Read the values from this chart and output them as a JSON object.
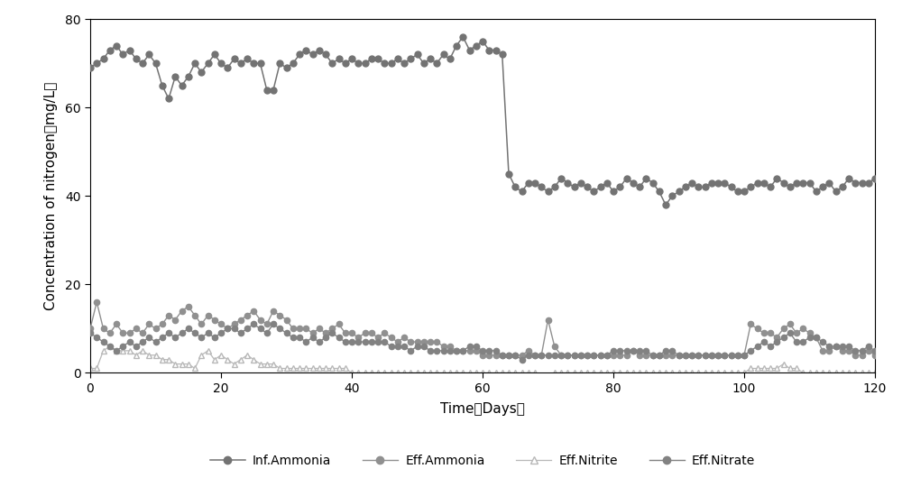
{
  "inf_ammonia_x": [
    0,
    1,
    2,
    3,
    4,
    5,
    6,
    7,
    8,
    9,
    10,
    11,
    12,
    13,
    14,
    15,
    16,
    17,
    18,
    19,
    20,
    21,
    22,
    23,
    24,
    25,
    26,
    27,
    28,
    29,
    30,
    31,
    32,
    33,
    34,
    35,
    36,
    37,
    38,
    39,
    40,
    41,
    42,
    43,
    44,
    45,
    46,
    47,
    48,
    49,
    50,
    51,
    52,
    53,
    54,
    55,
    56,
    57,
    58,
    59,
    60,
    61,
    62,
    63,
    64,
    65,
    66,
    67,
    68,
    69,
    70,
    71,
    72,
    73,
    74,
    75,
    76,
    77,
    78,
    79,
    80,
    81,
    82,
    83,
    84,
    85,
    86,
    87,
    88,
    89,
    90,
    91,
    92,
    93,
    94,
    95,
    96,
    97,
    98,
    99,
    100,
    101,
    102,
    103,
    104,
    105,
    106,
    107,
    108,
    109,
    110,
    111,
    112,
    113,
    114,
    115,
    116,
    117,
    118,
    119,
    120
  ],
  "inf_ammonia_y": [
    69,
    70,
    71,
    73,
    74,
    72,
    73,
    71,
    70,
    72,
    70,
    65,
    62,
    67,
    65,
    67,
    70,
    68,
    70,
    72,
    70,
    69,
    71,
    70,
    71,
    70,
    70,
    64,
    64,
    70,
    69,
    70,
    72,
    73,
    72,
    73,
    72,
    70,
    71,
    70,
    71,
    70,
    70,
    71,
    71,
    70,
    70,
    71,
    70,
    71,
    72,
    70,
    71,
    70,
    72,
    71,
    74,
    76,
    73,
    74,
    75,
    73,
    73,
    72,
    45,
    42,
    41,
    43,
    43,
    42,
    41,
    42,
    44,
    43,
    42,
    43,
    42,
    41,
    42,
    43,
    41,
    42,
    44,
    43,
    42,
    44,
    43,
    41,
    38,
    40,
    41,
    42,
    43,
    42,
    42,
    43,
    43,
    43,
    42,
    41,
    41,
    42,
    43,
    43,
    42,
    44,
    43,
    42,
    43,
    43,
    43,
    41,
    42,
    43,
    41,
    42,
    44,
    43,
    43,
    43,
    44
  ],
  "eff_ammonia_x": [
    0,
    1,
    2,
    3,
    4,
    5,
    6,
    7,
    8,
    9,
    10,
    11,
    12,
    13,
    14,
    15,
    16,
    17,
    18,
    19,
    20,
    21,
    22,
    23,
    24,
    25,
    26,
    27,
    28,
    29,
    30,
    31,
    32,
    33,
    34,
    35,
    36,
    37,
    38,
    39,
    40,
    41,
    42,
    43,
    44,
    45,
    46,
    47,
    48,
    49,
    50,
    51,
    52,
    53,
    54,
    55,
    56,
    57,
    58,
    59,
    60,
    61,
    62,
    63,
    64,
    65,
    66,
    67,
    68,
    69,
    70,
    71,
    72,
    73,
    74,
    75,
    76,
    77,
    78,
    79,
    80,
    81,
    82,
    83,
    84,
    85,
    86,
    87,
    88,
    89,
    90,
    91,
    92,
    93,
    94,
    95,
    96,
    97,
    98,
    99,
    100,
    101,
    102,
    103,
    104,
    105,
    106,
    107,
    108,
    109,
    110,
    111,
    112,
    113,
    114,
    115,
    116,
    117,
    118,
    119,
    120
  ],
  "eff_ammonia_y": [
    10,
    16,
    10,
    9,
    11,
    9,
    9,
    10,
    9,
    11,
    10,
    11,
    13,
    12,
    14,
    15,
    13,
    11,
    13,
    12,
    11,
    10,
    11,
    12,
    13,
    14,
    12,
    11,
    14,
    13,
    12,
    10,
    10,
    10,
    9,
    10,
    9,
    10,
    11,
    9,
    9,
    8,
    9,
    9,
    8,
    9,
    8,
    7,
    8,
    7,
    7,
    7,
    7,
    7,
    6,
    6,
    5,
    5,
    5,
    5,
    4,
    4,
    4,
    4,
    4,
    4,
    4,
    5,
    4,
    4,
    12,
    6,
    4,
    4,
    4,
    4,
    4,
    4,
    4,
    4,
    4,
    4,
    4,
    5,
    4,
    4,
    4,
    4,
    4,
    4,
    4,
    4,
    4,
    4,
    4,
    4,
    4,
    4,
    4,
    4,
    4,
    11,
    10,
    9,
    9,
    8,
    10,
    11,
    9,
    10,
    9,
    8,
    5,
    5,
    6,
    5,
    5,
    4,
    4,
    5,
    4
  ],
  "eff_nitrite_x": [
    0,
    1,
    2,
    3,
    4,
    5,
    6,
    7,
    8,
    9,
    10,
    11,
    12,
    13,
    14,
    15,
    16,
    17,
    18,
    19,
    20,
    21,
    22,
    23,
    24,
    25,
    26,
    27,
    28,
    29,
    30,
    31,
    32,
    33,
    34,
    35,
    36,
    37,
    38,
    39,
    40,
    41,
    42,
    43,
    44,
    45,
    46,
    47,
    48,
    49,
    50,
    51,
    52,
    53,
    54,
    55,
    56,
    57,
    58,
    59,
    60,
    61,
    62,
    63,
    64,
    65,
    66,
    67,
    68,
    69,
    70,
    71,
    72,
    73,
    74,
    75,
    76,
    77,
    78,
    79,
    80,
    81,
    82,
    83,
    84,
    85,
    86,
    87,
    88,
    89,
    90,
    91,
    92,
    93,
    94,
    95,
    96,
    97,
    98,
    99,
    100,
    101,
    102,
    103,
    104,
    105,
    106,
    107,
    108,
    109,
    110,
    111,
    112,
    113,
    114,
    115,
    116,
    117,
    118,
    119,
    120
  ],
  "eff_nitrite_y": [
    1,
    1,
    5,
    6,
    5,
    5,
    5,
    4,
    5,
    4,
    4,
    3,
    3,
    2,
    2,
    2,
    1,
    4,
    5,
    3,
    4,
    3,
    2,
    3,
    4,
    3,
    2,
    2,
    2,
    1,
    1,
    1,
    1,
    1,
    1,
    1,
    1,
    1,
    1,
    1,
    0,
    0,
    0,
    0,
    0,
    0,
    0,
    0,
    0,
    0,
    0,
    0,
    0,
    0,
    0,
    0,
    0,
    0,
    0,
    0,
    0,
    0,
    0,
    0,
    0,
    0,
    0,
    0,
    0,
    -1,
    -1,
    0,
    0,
    0,
    0,
    0,
    0,
    0,
    0,
    0,
    0,
    0,
    0,
    0,
    0,
    0,
    0,
    0,
    0,
    0,
    0,
    0,
    0,
    0,
    0,
    0,
    0,
    0,
    0,
    0,
    0,
    1,
    1,
    1,
    1,
    1,
    2,
    1,
    1,
    0,
    0,
    0,
    0,
    0,
    0,
    0,
    0,
    0,
    0,
    0,
    0
  ],
  "eff_nitrate_x": [
    0,
    1,
    2,
    3,
    4,
    5,
    6,
    7,
    8,
    9,
    10,
    11,
    12,
    13,
    14,
    15,
    16,
    17,
    18,
    19,
    20,
    21,
    22,
    23,
    24,
    25,
    26,
    27,
    28,
    29,
    30,
    31,
    32,
    33,
    34,
    35,
    36,
    37,
    38,
    39,
    40,
    41,
    42,
    43,
    44,
    45,
    46,
    47,
    48,
    49,
    50,
    51,
    52,
    53,
    54,
    55,
    56,
    57,
    58,
    59,
    60,
    61,
    62,
    63,
    64,
    65,
    66,
    67,
    68,
    69,
    70,
    71,
    72,
    73,
    74,
    75,
    76,
    77,
    78,
    79,
    80,
    81,
    82,
    83,
    84,
    85,
    86,
    87,
    88,
    89,
    90,
    91,
    92,
    93,
    94,
    95,
    96,
    97,
    98,
    99,
    100,
    101,
    102,
    103,
    104,
    105,
    106,
    107,
    108,
    109,
    110,
    111,
    112,
    113,
    114,
    115,
    116,
    117,
    118,
    119,
    120
  ],
  "eff_nitrate_y": [
    9,
    8,
    7,
    6,
    5,
    6,
    7,
    6,
    7,
    8,
    7,
    8,
    9,
    8,
    9,
    10,
    9,
    8,
    9,
    8,
    9,
    10,
    10,
    9,
    10,
    11,
    10,
    9,
    11,
    10,
    9,
    8,
    8,
    7,
    8,
    7,
    8,
    9,
    8,
    7,
    7,
    7,
    7,
    7,
    7,
    7,
    6,
    6,
    6,
    5,
    6,
    6,
    5,
    5,
    5,
    5,
    5,
    5,
    6,
    6,
    5,
    5,
    5,
    4,
    4,
    4,
    3,
    4,
    4,
    4,
    4,
    4,
    4,
    4,
    4,
    4,
    4,
    4,
    4,
    4,
    5,
    5,
    5,
    5,
    5,
    5,
    4,
    4,
    5,
    5,
    4,
    4,
    4,
    4,
    4,
    4,
    4,
    4,
    4,
    4,
    4,
    5,
    6,
    7,
    6,
    7,
    8,
    9,
    7,
    7,
    8,
    8,
    7,
    6,
    6,
    6,
    6,
    5,
    5,
    6,
    5
  ],
  "bg_color": "#ffffff",
  "ylabel": "Concentration of nitrogen（mg/L）",
  "xlabel": "Time（Days）",
  "ylim": [
    0,
    80
  ],
  "xlim": [
    0,
    120
  ],
  "yticks": [
    0,
    20,
    40,
    60,
    80
  ],
  "xticks": [
    0,
    20,
    40,
    60,
    80,
    100,
    120
  ],
  "legend_labels": [
    "Inf.Ammonia",
    "Eff.Ammonia",
    "Eff.Nitrite",
    "Eff.Nitrate"
  ],
  "inf_color": "#737373",
  "eff_amm_color": "#909090",
  "eff_nit_color": "#b8b8b8",
  "eff_ntr_color": "#828282"
}
